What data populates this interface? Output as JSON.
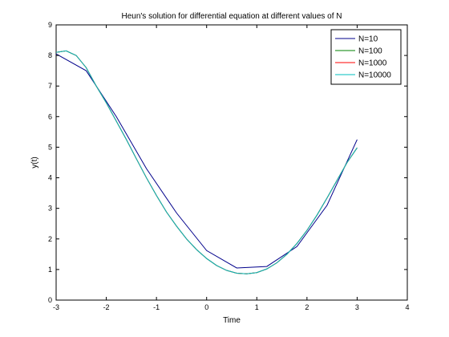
{
  "chart_data": {
    "type": "line",
    "title": "Heun's solution for differential equation at different values of N",
    "xlabel": "Time",
    "ylabel": "y(t)",
    "xlim": [
      -3,
      4
    ],
    "ylim": [
      0,
      9
    ],
    "xticks": [
      "-3",
      "-2",
      "-1",
      "0",
      "1",
      "2",
      "3",
      "4"
    ],
    "yticks": [
      "0",
      "1",
      "2",
      "3",
      "4",
      "5",
      "6",
      "7",
      "8",
      "9"
    ],
    "grid": false,
    "legend_position": "top-right",
    "series": [
      {
        "name": "N=10",
        "color": "#00008B",
        "x": [
          -3,
          -2.4,
          -1.8,
          -1.2,
          -0.6,
          0,
          0.6,
          1.2,
          1.8,
          2.4,
          3
        ],
        "y": [
          8.05,
          7.5,
          6.0,
          4.3,
          2.85,
          1.62,
          1.05,
          1.1,
          1.75,
          3.1,
          5.25
        ]
      },
      {
        "name": "N=100",
        "color": "#008000",
        "x": [
          -3,
          -2.8,
          -2.6,
          -2.4,
          -2.2,
          -2.0,
          -1.8,
          -1.6,
          -1.4,
          -1.2,
          -1.0,
          -0.8,
          -0.6,
          -0.4,
          -0.2,
          0,
          0.2,
          0.4,
          0.6,
          0.8,
          1.0,
          1.2,
          1.4,
          1.6,
          1.8,
          2.0,
          2.2,
          2.4,
          2.6,
          2.8,
          3.0
        ],
        "y": [
          8.1,
          8.15,
          8.0,
          7.6,
          7.0,
          6.45,
          5.85,
          5.25,
          4.62,
          4.0,
          3.42,
          2.88,
          2.42,
          2.0,
          1.65,
          1.36,
          1.13,
          0.97,
          0.88,
          0.86,
          0.9,
          1.02,
          1.22,
          1.5,
          1.85,
          2.28,
          2.78,
          3.34,
          3.92,
          4.5,
          4.98
        ]
      },
      {
        "name": "N=1000",
        "color": "#FF0000",
        "x": [
          -3,
          -2.8,
          -2.6,
          -2.4,
          -2.2,
          -2.0,
          -1.8,
          -1.6,
          -1.4,
          -1.2,
          -1.0,
          -0.8,
          -0.6,
          -0.4,
          -0.2,
          0,
          0.2,
          0.4,
          0.6,
          0.8,
          1.0,
          1.2,
          1.4,
          1.6,
          1.8,
          2.0,
          2.2,
          2.4,
          2.6,
          2.8,
          3.0
        ],
        "y": [
          8.1,
          8.15,
          8.0,
          7.6,
          7.0,
          6.45,
          5.85,
          5.25,
          4.62,
          4.0,
          3.42,
          2.88,
          2.42,
          2.0,
          1.65,
          1.36,
          1.13,
          0.97,
          0.88,
          0.86,
          0.9,
          1.02,
          1.22,
          1.5,
          1.85,
          2.28,
          2.78,
          3.34,
          3.92,
          4.5,
          4.98
        ]
      },
      {
        "name": "N=10000",
        "color": "#00BFBF",
        "x": [
          -3,
          -2.8,
          -2.6,
          -2.4,
          -2.2,
          -2.0,
          -1.8,
          -1.6,
          -1.4,
          -1.2,
          -1.0,
          -0.8,
          -0.6,
          -0.4,
          -0.2,
          0,
          0.2,
          0.4,
          0.6,
          0.8,
          1.0,
          1.2,
          1.4,
          1.6,
          1.8,
          2.0,
          2.2,
          2.4,
          2.6,
          2.8,
          3.0
        ],
        "y": [
          8.1,
          8.15,
          8.0,
          7.6,
          7.0,
          6.45,
          5.85,
          5.25,
          4.62,
          4.0,
          3.42,
          2.88,
          2.42,
          2.0,
          1.65,
          1.36,
          1.13,
          0.97,
          0.88,
          0.86,
          0.9,
          1.02,
          1.22,
          1.5,
          1.85,
          2.28,
          2.78,
          3.34,
          3.92,
          4.5,
          4.98
        ]
      }
    ]
  }
}
